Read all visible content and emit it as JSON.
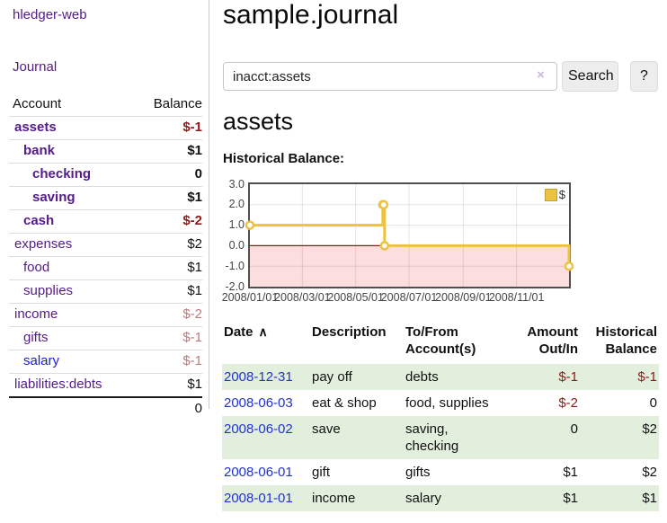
{
  "app": {
    "brand": "hledger-web"
  },
  "icons": {
    "sort_asc": "∧",
    "clear": "×"
  },
  "sidebar": {
    "journal_link": "Journal",
    "accounts_table": {
      "headers": {
        "account": "Account",
        "balance": "Balance"
      },
      "rows": [
        {
          "name": "assets",
          "level": 1,
          "bold": true,
          "link": "purple",
          "balance": "$-1",
          "balance_class": "neg-strong"
        },
        {
          "name": "bank",
          "level": 2,
          "bold": true,
          "link": "purple",
          "balance": "$1",
          "balance_class": ""
        },
        {
          "name": "checking",
          "level": 3,
          "bold": true,
          "link": "purple",
          "balance": "0",
          "balance_class": ""
        },
        {
          "name": "saving",
          "level": 3,
          "bold": true,
          "link": "purple",
          "balance": "$1",
          "balance_class": ""
        },
        {
          "name": "cash",
          "level": 2,
          "bold": true,
          "link": "purple",
          "balance": "$-2",
          "balance_class": "neg-strong"
        },
        {
          "name": "expenses",
          "level": 1,
          "bold": false,
          "link": "purple",
          "balance": "$2",
          "balance_class": ""
        },
        {
          "name": "food",
          "level": 2,
          "bold": false,
          "link": "purple",
          "balance": "$1",
          "balance_class": ""
        },
        {
          "name": "supplies",
          "level": 2,
          "bold": false,
          "link": "purple",
          "balance": "$1",
          "balance_class": ""
        },
        {
          "name": "income",
          "level": 1,
          "bold": false,
          "link": "purple",
          "balance": "$-2",
          "balance_class": "neg-soft"
        },
        {
          "name": "gifts",
          "level": 2,
          "bold": false,
          "link": "purple",
          "balance": "$-1",
          "balance_class": "neg-soft"
        },
        {
          "name": "salary",
          "level": 2,
          "bold": false,
          "link": "blue",
          "balance": "$-1",
          "balance_class": "neg-soft"
        },
        {
          "name": "liabilities:debts",
          "level": 1,
          "bold": false,
          "link": "purple",
          "balance": "$1",
          "balance_class": ""
        }
      ],
      "total": "0"
    }
  },
  "main": {
    "title": "sample.journal",
    "search": {
      "value": "inacct:assets",
      "button": "Search",
      "help_button": "?"
    },
    "account_heading": "assets",
    "chart_label": "Historical Balance:"
  },
  "chart_data": {
    "type": "line",
    "title": "Historical Balance",
    "step": true,
    "series": [
      {
        "name": "$",
        "color": "#edc240",
        "points": [
          [
            "2008-01-01",
            1
          ],
          [
            "2008-06-01",
            2
          ],
          [
            "2008-06-02",
            2
          ],
          [
            "2008-06-03",
            0
          ],
          [
            "2008-12-31",
            -1
          ]
        ]
      }
    ],
    "xlim": [
      "2008-01-01",
      "2008-12-31"
    ],
    "ylim": [
      -2,
      3
    ],
    "yticks": [
      "3.0",
      "2.0",
      "1.0",
      "0.0",
      "-1.0",
      "-2.0"
    ],
    "xticks": [
      "2008/01/01",
      "2008/03/01",
      "2008/05/01",
      "2008/07/01",
      "2008/09/01",
      "2008/11/01"
    ],
    "grid": true,
    "negative_region_color": "#fcdede",
    "zero_line_color": "#8b1a1a",
    "grid_color": "rgba(0,0,0,0.10)",
    "border_color": "#4f4f4f",
    "legend": {
      "label": "$",
      "position": "top-right"
    }
  },
  "register": {
    "headers": {
      "date": "Date",
      "description": "Description",
      "accounts": "To/From\nAccount(s)",
      "amount": "Amount\nOut/In",
      "balance": "Historical\nBalance"
    },
    "rows": [
      {
        "date": "2008-12-31",
        "description": "pay off",
        "accounts": "debts",
        "amount": "$-1",
        "amount_class": "neg-strong",
        "balance": "$-1",
        "balance_class": "neg-strong",
        "green": true
      },
      {
        "date": "2008-06-03",
        "description": "eat & shop",
        "accounts": "food, supplies",
        "amount": "$-2",
        "amount_class": "neg-strong",
        "balance": "0",
        "balance_class": "",
        "green": false
      },
      {
        "date": "2008-06-02",
        "description": "save",
        "accounts": "saving, checking",
        "amount": "0",
        "amount_class": "",
        "balance": "$2",
        "balance_class": "",
        "green": true
      },
      {
        "date": "2008-06-01",
        "description": "gift",
        "accounts": "gifts",
        "amount": "$1",
        "amount_class": "",
        "balance": "$2",
        "balance_class": "",
        "green": false
      },
      {
        "date": "2008-01-01",
        "description": "income",
        "accounts": "salary",
        "amount": "$1",
        "amount_class": "",
        "balance": "$1",
        "balance_class": "",
        "green": true
      }
    ]
  }
}
